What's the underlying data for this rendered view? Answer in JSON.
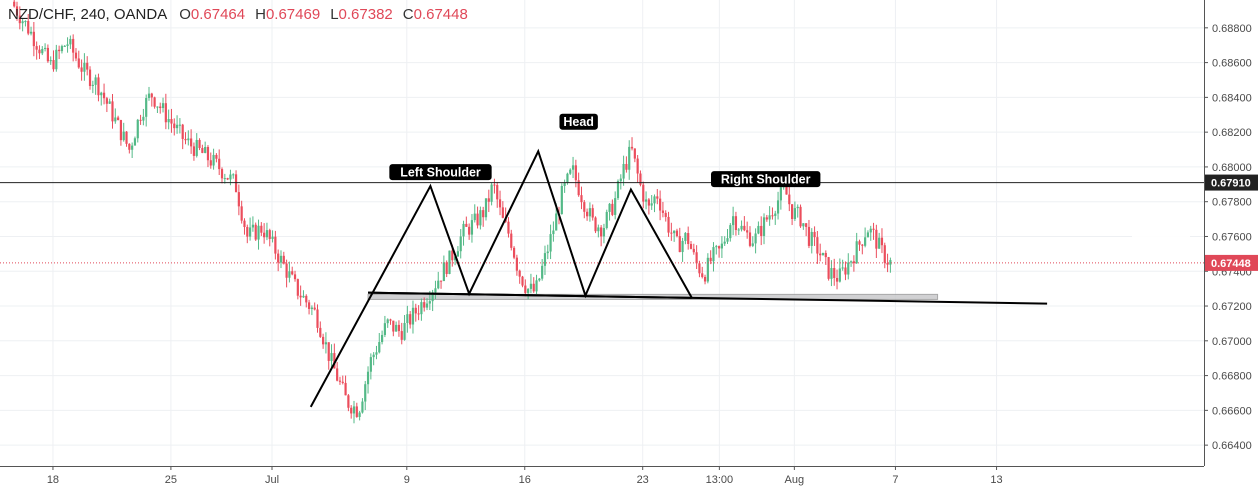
{
  "header": {
    "symbol": "NZD/CHF, 240, OANDA",
    "open_key": "O",
    "open": "0.67464",
    "high_key": "H",
    "high": "0.67469",
    "low_key": "L",
    "low": "0.67382",
    "close_key": "C",
    "close": "0.67448"
  },
  "chart_data": {
    "type": "candlestick",
    "instrument": "NZD/CHF",
    "timeframe": "240",
    "source": "OANDA",
    "ylim": [
      0.6628,
      0.6896
    ],
    "y_ticks": [
      "0.68800",
      "0.68600",
      "0.68400",
      "0.68200",
      "0.68000",
      "0.67800",
      "0.67600",
      "0.67400",
      "0.67200",
      "0.67000",
      "0.66800",
      "0.66600",
      "0.66400"
    ],
    "x_ticks": [
      {
        "label": "18",
        "day": -13
      },
      {
        "label": "25",
        "day": -6
      },
      {
        "label": "Jul",
        "day": 0
      },
      {
        "label": "9",
        "day": 8
      },
      {
        "label": "16",
        "day": 15
      },
      {
        "label": "23",
        "day": 22
      },
      {
        "label": "13:00",
        "day": 26.55
      },
      {
        "label": "Aug",
        "day": 31
      },
      {
        "label": "7",
        "day": 37
      },
      {
        "label": "13",
        "day": 43
      }
    ],
    "price_path": [
      [
        -15.3,
        0.6895
      ],
      [
        -14,
        0.6875
      ],
      [
        -13,
        0.6858
      ],
      [
        -12,
        0.6872
      ],
      [
        -11,
        0.6855
      ],
      [
        -10.2,
        0.6848
      ],
      [
        -9.2,
        0.6828
      ],
      [
        -8.3,
        0.681
      ],
      [
        -7.6,
        0.6832
      ],
      [
        -7.0,
        0.6842
      ],
      [
        -6,
        0.6828
      ],
      [
        -5,
        0.6815
      ],
      [
        -4,
        0.6808
      ],
      [
        -3,
        0.68
      ],
      [
        -2,
        0.679
      ],
      [
        -1.3,
        0.676
      ],
      [
        -0.4,
        0.6765
      ],
      [
        0.6,
        0.6748
      ],
      [
        1.6,
        0.673
      ],
      [
        2.8,
        0.6715
      ],
      [
        3.6,
        0.669
      ],
      [
        4.6,
        0.6665
      ],
      [
        5.3,
        0.666
      ],
      [
        6.0,
        0.6688
      ],
      [
        7.0,
        0.671
      ],
      [
        7.8,
        0.6705
      ],
      [
        8.8,
        0.6718
      ],
      [
        9.8,
        0.6732
      ],
      [
        10.8,
        0.6748
      ],
      [
        11.5,
        0.6762
      ],
      [
        12.2,
        0.6768
      ],
      [
        12.8,
        0.6775
      ],
      [
        13.3,
        0.679
      ],
      [
        13.8,
        0.677
      ],
      [
        14.3,
        0.676
      ],
      [
        14.8,
        0.674
      ],
      [
        15.3,
        0.673
      ],
      [
        15.8,
        0.6728
      ],
      [
        16.3,
        0.6745
      ],
      [
        16.8,
        0.6762
      ],
      [
        17.4,
        0.6785
      ],
      [
        18.0,
        0.6798
      ],
      [
        18.6,
        0.6782
      ],
      [
        19.2,
        0.6768
      ],
      [
        19.8,
        0.6765
      ],
      [
        20.5,
        0.678
      ],
      [
        21.0,
        0.6798
      ],
      [
        21.5,
        0.681
      ],
      [
        22.0,
        0.679
      ],
      [
        22.5,
        0.6775
      ],
      [
        23.0,
        0.6785
      ],
      [
        23.6,
        0.6768
      ],
      [
        24.2,
        0.6755
      ],
      [
        24.8,
        0.676
      ],
      [
        25.3,
        0.6745
      ],
      [
        25.8,
        0.6738
      ],
      [
        26.3,
        0.6748
      ],
      [
        26.8,
        0.6752
      ],
      [
        27.5,
        0.6772
      ],
      [
        28.2,
        0.6762
      ],
      [
        28.8,
        0.6758
      ],
      [
        29.4,
        0.6768
      ],
      [
        30.0,
        0.6778
      ],
      [
        30.6,
        0.6787
      ],
      [
        31.0,
        0.6775
      ],
      [
        31.6,
        0.677
      ],
      [
        32.0,
        0.676
      ],
      [
        32.6,
        0.6752
      ],
      [
        33.2,
        0.674
      ],
      [
        33.8,
        0.6736
      ],
      [
        34.4,
        0.6745
      ],
      [
        35.0,
        0.6755
      ],
      [
        35.5,
        0.6765
      ],
      [
        35.9,
        0.676
      ],
      [
        36.3,
        0.6752
      ],
      [
        36.8,
        0.6745
      ]
    ],
    "current_price": {
      "label": "0.67448",
      "price": 0.67448,
      "color": "#e04858"
    },
    "horizontal_line": {
      "label": "0.67910",
      "price": 0.6791,
      "color": "#222222"
    },
    "pattern": {
      "name": "head and shoulders",
      "labels": [
        {
          "text": "Left Shoulder",
          "day": 10,
          "price": 0.6797
        },
        {
          "text": "Head",
          "day": 18.2,
          "price": 0.6826
        },
        {
          "text": "Right Shoulder",
          "day": 29.3,
          "price": 0.6793
        }
      ],
      "zigzag": [
        [
          2.3,
          0.6662
        ],
        [
          9.4,
          0.6789
        ],
        [
          11.7,
          0.6727
        ],
        [
          15.8,
          0.6809
        ],
        [
          18.6,
          0.6726
        ],
        [
          21.3,
          0.6787
        ],
        [
          24.9,
          0.6725
        ]
      ],
      "neckline_segment": [
        [
          5.7,
          0.67277
        ],
        [
          24.9,
          0.67247
        ]
      ],
      "neckline_extended": [
        [
          5.7,
          0.67277
        ],
        [
          46.0,
          0.67214
        ]
      ],
      "neckline_zone": {
        "from_day": 5.7,
        "to_day": 39.5,
        "price_top": 0.67267,
        "price_bottom": 0.67238
      }
    },
    "up_color": "#53b987",
    "down_color": "#eb4d5c",
    "grid": true
  }
}
